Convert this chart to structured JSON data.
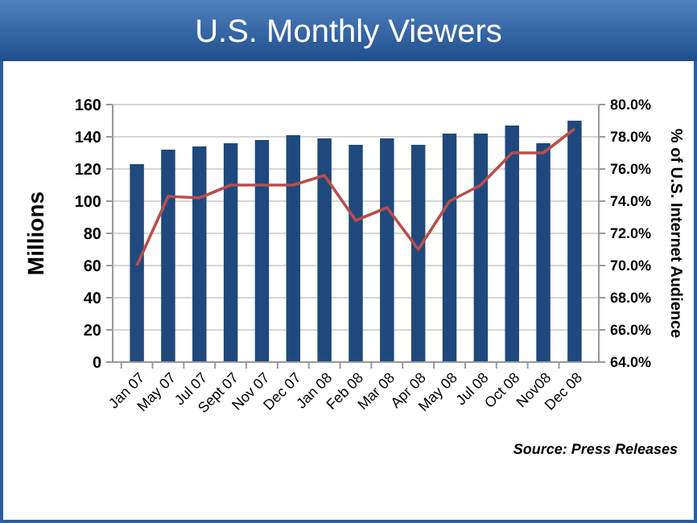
{
  "chart_data": {
    "type": "bar",
    "title": "U.S. Monthly Viewers",
    "ylabel": "Millions",
    "y2label": "% of U.S. Internet Audience",
    "categories": [
      "Jan 07",
      "May 07",
      "Jul 07",
      "Sept 07",
      "Nov 07",
      "Dec 07",
      "Jan 08",
      "Feb 08",
      "Mar 08",
      "Apr 08",
      "May 08",
      "Jul 08",
      "Oct 08",
      "Nov08",
      "Dec 08"
    ],
    "series": [
      {
        "color": "#1f497d",
        "values": [
          123,
          132,
          134,
          136,
          138,
          141,
          139,
          135,
          139,
          135,
          142,
          142,
          147,
          136,
          150
        ]
      },
      {
        "type": "line",
        "axis": "y2",
        "color": "#b84f4c",
        "values": [
          70.0,
          74.3,
          74.2,
          75.0,
          75.0,
          75.0,
          75.6,
          72.8,
          73.6,
          71.0,
          74.0,
          75.0,
          77.0,
          77.0,
          78.5
        ]
      }
    ],
    "ylim": [
      0,
      160
    ],
    "yticks": [
      0,
      20,
      40,
      60,
      80,
      100,
      120,
      140,
      160
    ],
    "y2lim": [
      64,
      80
    ],
    "y2ticks": [
      {
        "value": 64,
        "label": "64.0%"
      },
      {
        "value": 66,
        "label": "66.0%"
      },
      {
        "value": 68,
        "label": "68.0%"
      },
      {
        "value": 70,
        "label": "70.0%"
      },
      {
        "value": 72,
        "label": "72.0%"
      },
      {
        "value": 74,
        "label": "74.0%"
      },
      {
        "value": 76,
        "label": "76.0%"
      },
      {
        "value": 78,
        "label": "78.0%"
      },
      {
        "value": 80,
        "label": "80.0%"
      }
    ],
    "grid": "y",
    "marker": "none",
    "line_style": "solid",
    "annotations": [
      "Source: Press Releases"
    ]
  }
}
